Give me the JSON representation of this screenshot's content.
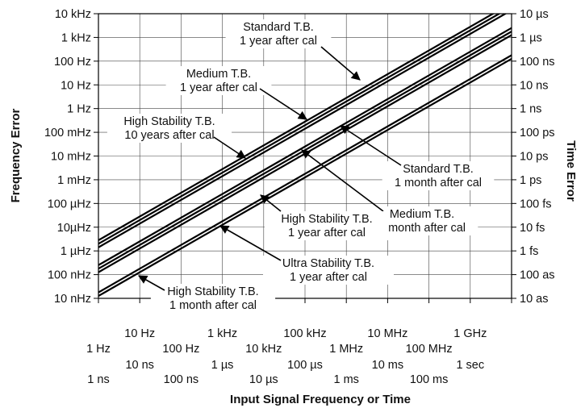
{
  "chart_data": {
    "type": "line",
    "title": "",
    "xlabel": "Input Signal Frequency or Time",
    "ylabel_left": "Frequency Error",
    "ylabel_right": "Time Error",
    "x_scale": "log",
    "y_scale": "log",
    "grid": true,
    "xlim_decades": [
      0,
      10
    ],
    "ylim_decades": [
      -8,
      4
    ],
    "y_left_ticks": [
      "10 nHz",
      "100 nHz",
      "1 µHz",
      "10µHz",
      "100 µHz",
      "1 mHz",
      "10 mHz",
      "100 mHz",
      "1 Hz",
      "10 Hz",
      "100 Hz",
      "1 kHz",
      "10 kHz"
    ],
    "y_right_ticks": [
      "10 as",
      "100 as",
      "1 fs",
      "10 fs",
      "100 fs",
      "1 ps",
      "10 ps",
      "100 ps",
      "1 ns",
      "10 ns",
      "100 ns",
      "1 µs",
      "10 µs"
    ],
    "x_freq_ticks": [
      "1 Hz",
      "10 Hz",
      "100 Hz",
      "1 kHz",
      "10 kHz",
      "100 kHz",
      "1 MHz",
      "10 MHz",
      "100 MHz",
      "1 GHz"
    ],
    "x_time_ticks": [
      "1 ns",
      "10 ns",
      "100 ns",
      "1 µs",
      "10 µs",
      "100 µs",
      "1 ms",
      "10 ms",
      "100 ms",
      "1 sec"
    ],
    "series": [
      {
        "name": "Standard T.B. 1 year after cal",
        "x": [
          0,
          10
        ],
        "y": [
          -5.55,
          4.45
        ]
      },
      {
        "name": "Medium T.B. 1 year after cal",
        "x": [
          0,
          10
        ],
        "y": [
          -5.7,
          4.3
        ]
      },
      {
        "name": "High Stability T.B. 10 years after cal",
        "x": [
          0,
          10
        ],
        "y": [
          -5.85,
          4.15
        ]
      },
      {
        "name": "Standard T.B. 1 month after cal",
        "x": [
          0,
          10
        ],
        "y": [
          -6.6,
          3.4
        ]
      },
      {
        "name": "Medium T.B. 1 month after cal",
        "x": [
          0,
          10
        ],
        "y": [
          -6.75,
          3.25
        ]
      },
      {
        "name": "High Stability T.B. 1 year after cal",
        "x": [
          0,
          10
        ],
        "y": [
          -6.9,
          3.1
        ]
      },
      {
        "name": "Ultra Stability T.B. 1 year after cal",
        "x": [
          0,
          10
        ],
        "y": [
          -7.75,
          2.25
        ]
      },
      {
        "name": "High Stability T.B. 1 month after cal",
        "x": [
          0,
          10
        ],
        "y": [
          -7.9,
          2.1
        ]
      }
    ],
    "annotations": [
      {
        "lines": [
          "Standard T.B.",
          "1 year after cal"
        ]
      },
      {
        "lines": [
          "Medium T.B.",
          "1 year after cal"
        ]
      },
      {
        "lines": [
          "High Stability T.B.",
          "10 years after cal"
        ]
      },
      {
        "lines": [
          "Standard T.B.",
          "1 month after cal"
        ]
      },
      {
        "lines": [
          "Medium T.B.",
          "1 month after cal"
        ]
      },
      {
        "lines": [
          "High Stability T.B.",
          "1 year after cal"
        ]
      },
      {
        "lines": [
          "Ultra Stability T.B.",
          "1 year after cal"
        ]
      },
      {
        "lines": [
          "High Stability T.B.",
          "1 month after cal"
        ]
      }
    ]
  }
}
